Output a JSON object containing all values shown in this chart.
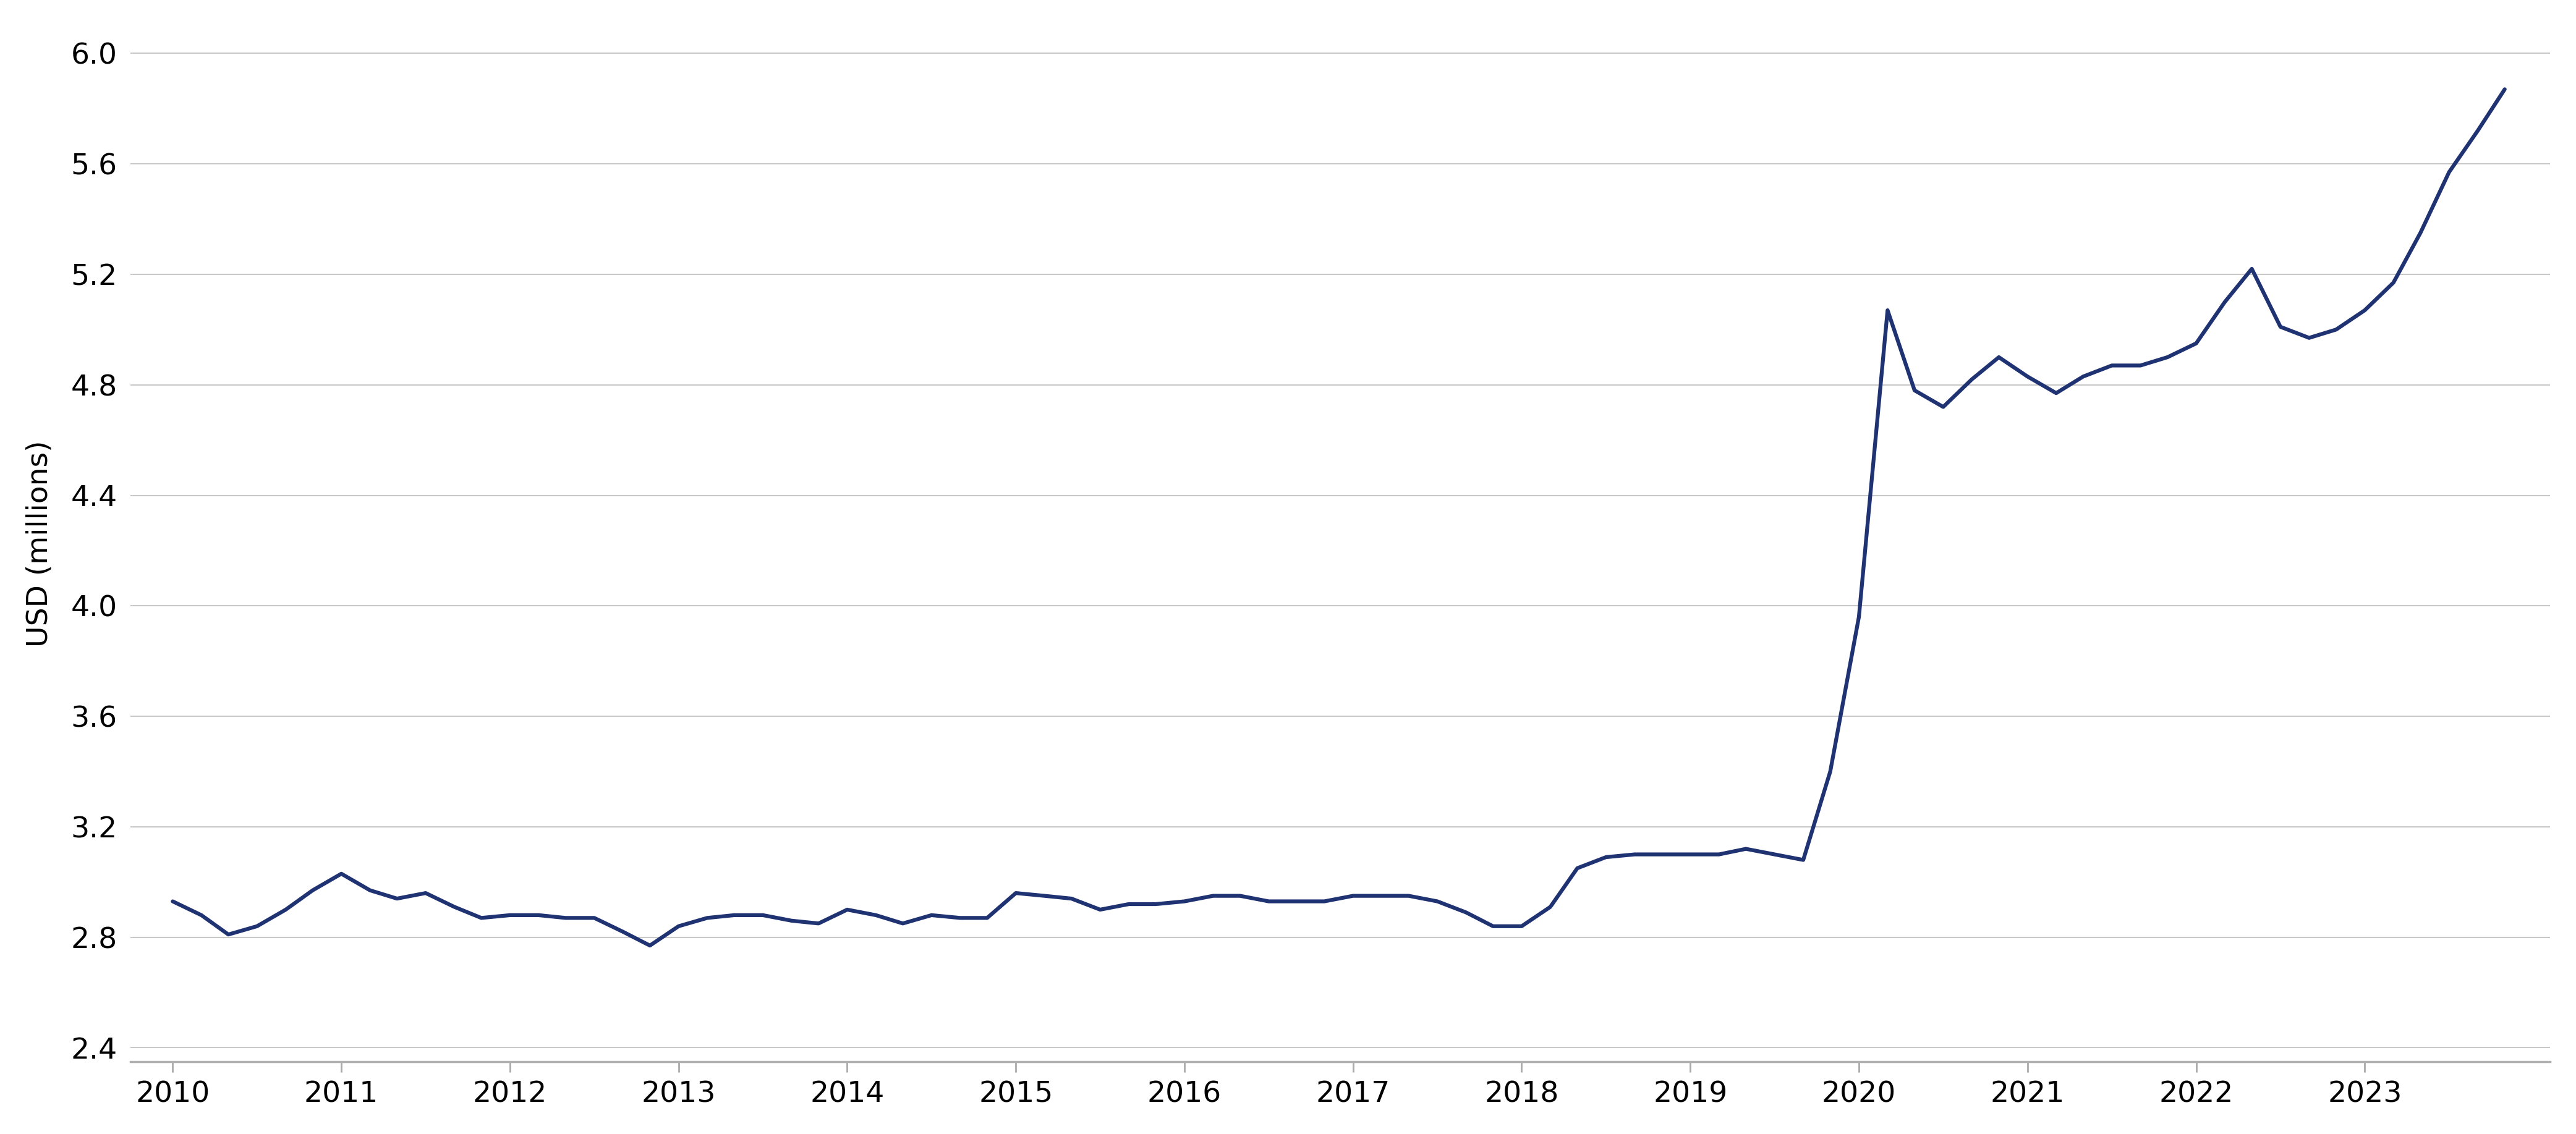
{
  "x_values": [
    2010.0,
    2010.17,
    2010.33,
    2010.5,
    2010.67,
    2010.83,
    2011.0,
    2011.17,
    2011.33,
    2011.5,
    2011.67,
    2011.83,
    2012.0,
    2012.17,
    2012.33,
    2012.5,
    2012.67,
    2012.83,
    2013.0,
    2013.17,
    2013.33,
    2013.5,
    2013.67,
    2013.83,
    2014.0,
    2014.17,
    2014.33,
    2014.5,
    2014.67,
    2014.83,
    2015.0,
    2015.17,
    2015.33,
    2015.5,
    2015.67,
    2015.83,
    2016.0,
    2016.17,
    2016.33,
    2016.5,
    2016.67,
    2016.83,
    2017.0,
    2017.17,
    2017.33,
    2017.5,
    2017.67,
    2017.83,
    2018.0,
    2018.17,
    2018.33,
    2018.5,
    2018.67,
    2018.83,
    2019.0,
    2019.17,
    2019.33,
    2019.5,
    2019.67,
    2019.83,
    2020.0,
    2020.17,
    2020.33,
    2020.5,
    2020.67,
    2020.83,
    2021.0,
    2021.17,
    2021.33,
    2021.5,
    2021.67,
    2021.83,
    2022.0,
    2022.17,
    2022.33,
    2022.5,
    2022.67,
    2022.83,
    2023.0,
    2023.17,
    2023.33,
    2023.5,
    2023.67,
    2023.83
  ],
  "y_values": [
    2.93,
    2.88,
    2.81,
    2.84,
    2.9,
    2.97,
    3.03,
    2.97,
    2.94,
    2.96,
    2.91,
    2.87,
    2.88,
    2.88,
    2.87,
    2.87,
    2.82,
    2.77,
    2.84,
    2.87,
    2.88,
    2.88,
    2.86,
    2.85,
    2.9,
    2.88,
    2.85,
    2.88,
    2.87,
    2.87,
    2.96,
    2.95,
    2.94,
    2.9,
    2.92,
    2.92,
    2.93,
    2.95,
    2.95,
    2.93,
    2.93,
    2.93,
    2.95,
    2.95,
    2.95,
    2.93,
    2.89,
    2.84,
    2.84,
    2.91,
    3.05,
    3.09,
    3.1,
    3.1,
    3.1,
    3.1,
    3.12,
    3.1,
    3.08,
    3.4,
    3.96,
    5.07,
    4.78,
    4.72,
    4.82,
    4.9,
    4.83,
    4.77,
    4.83,
    4.87,
    4.87,
    4.9,
    4.95,
    5.1,
    5.22,
    5.01,
    4.97,
    5.0,
    5.07,
    5.17,
    5.35,
    5.57,
    5.72,
    5.87
  ],
  "line_color": "#1f3272",
  "line_width": 4.5,
  "background_color": "#ffffff",
  "grid_color": "#c8c8c8",
  "ylabel": "USD (millions)",
  "yticks": [
    2.4,
    2.8,
    3.2,
    3.6,
    4.0,
    4.4,
    4.8,
    5.2,
    5.6,
    6.0
  ],
  "ytick_labels": [
    "2.4",
    "2.8",
    "3.2",
    "3.6",
    "4.0",
    "4.4",
    "4.8",
    "5.2",
    "5.6",
    "6.0"
  ],
  "ylim": [
    2.35,
    6.1
  ],
  "xticks": [
    2010,
    2011,
    2012,
    2013,
    2014,
    2015,
    2016,
    2017,
    2018,
    2019,
    2020,
    2021,
    2022,
    2023
  ],
  "xlim": [
    2009.75,
    2024.1
  ],
  "tick_fontsize": 34,
  "ylabel_fontsize": 34,
  "ylabel_rotation": 90
}
